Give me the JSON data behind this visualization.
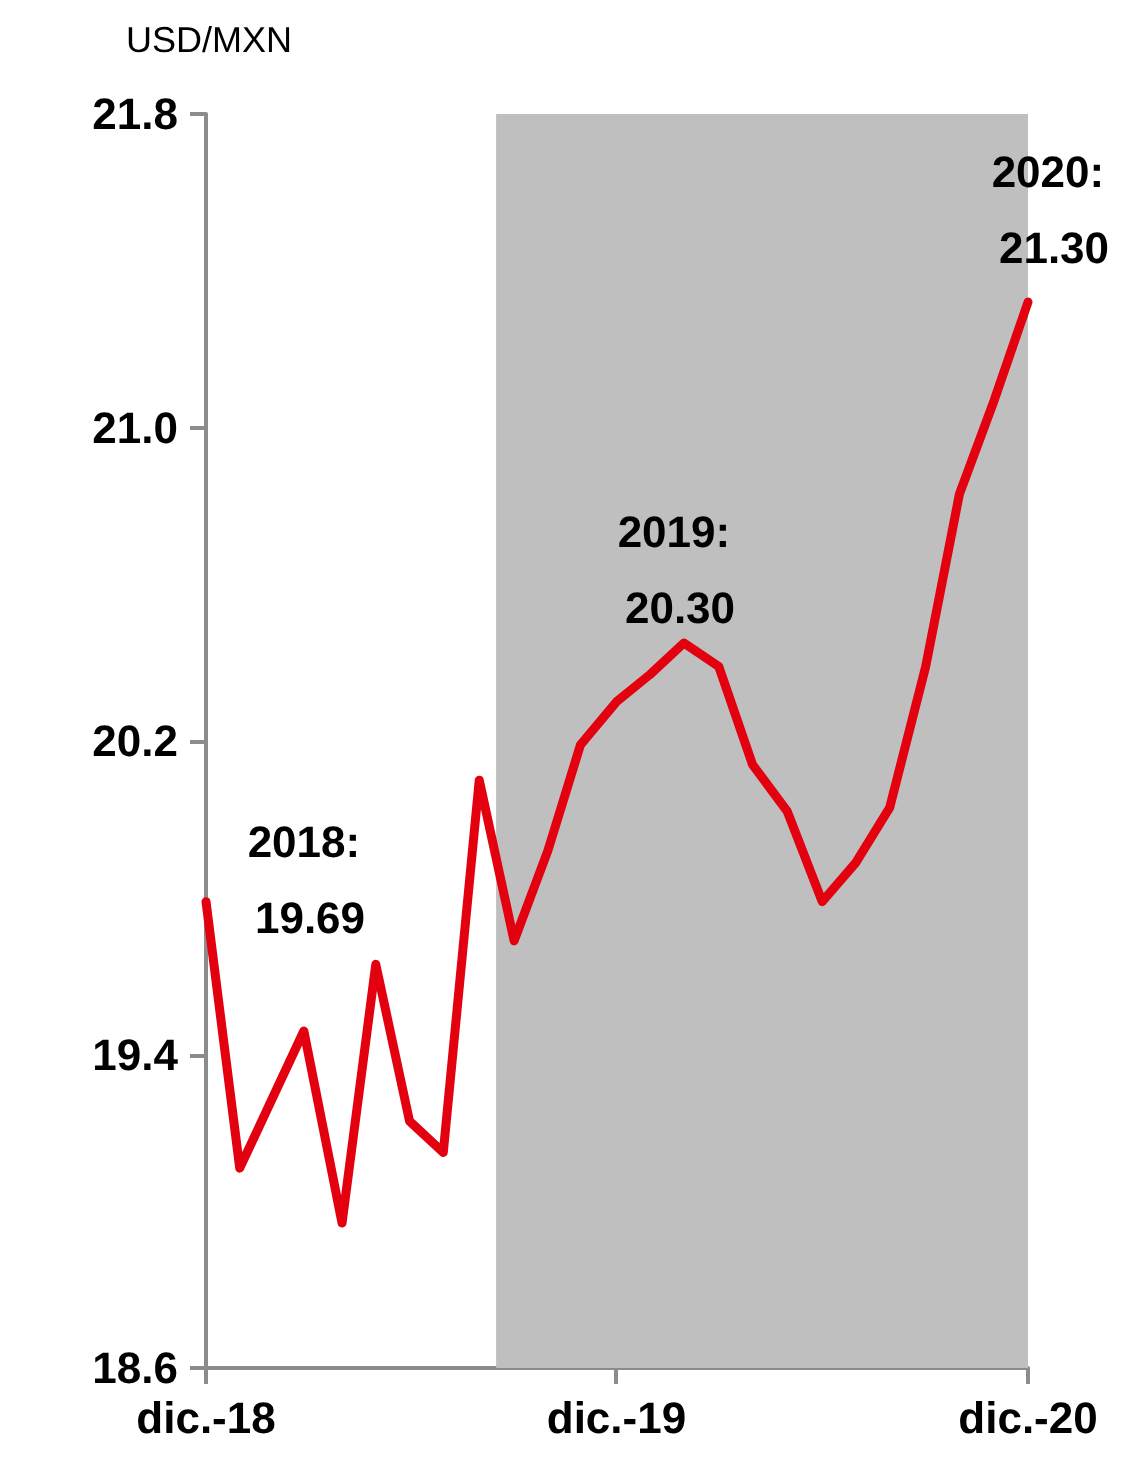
{
  "chart_data": {
    "type": "line",
    "ylabel": "USD/MXN",
    "x": [
      "2018-12-01",
      "2018-12-31",
      "2019-02-26",
      "2019-04-01",
      "2019-05-01",
      "2019-05-31",
      "2019-06-30",
      "2019-08-01",
      "2019-09-01",
      "2019-10-01",
      "2019-10-30",
      "2019-12-01",
      "2019-12-31",
      "2020-01-30",
      "2020-03-01",
      "2020-03-31",
      "2020-05-01",
      "2020-06-01",
      "2020-07-01",
      "2020-07-31",
      "2020-09-01",
      "2020-10-01",
      "2020-11-01",
      "2020-12-01"
    ],
    "series": [
      {
        "color": "#e3000f",
        "values": [
          19.79,
          19.11,
          19.46,
          18.97,
          19.63,
          19.23,
          19.15,
          20.1,
          19.69,
          19.92,
          20.19,
          20.3,
          20.37,
          20.45,
          20.39,
          20.14,
          20.02,
          19.79,
          19.89,
          20.03,
          20.39,
          20.83,
          21.07,
          21.32
        ]
      }
    ],
    "xlim": [
      "2018-12-01",
      "2020-12-01"
    ],
    "xticks": [
      {
        "value": "2018-12-01",
        "label": "dic.-18"
      },
      {
        "value": "2019-12-01",
        "label": "dic.-19"
      },
      {
        "value": "2020-12-01",
        "label": "dic.-20"
      }
    ],
    "ylim": [
      18.6,
      21.8
    ],
    "yticks": [
      {
        "value": 18.6,
        "label": "18.6"
      },
      {
        "value": 19.4,
        "label": "19.4"
      },
      {
        "value": 20.2,
        "label": "20.2"
      },
      {
        "value": 21.0,
        "label": "21.0"
      },
      {
        "value": 21.8,
        "label": "21.8"
      }
    ],
    "bands": [
      {
        "axis": "x",
        "from": "2019-08-16",
        "to": "2020-12-01",
        "color": "#bfbfbf"
      }
    ],
    "annotations": [
      "2018: 19.69",
      "2019: 20.30",
      "2020: 21.30"
    ],
    "grid": false,
    "marker": "none",
    "line_style": "solid"
  }
}
